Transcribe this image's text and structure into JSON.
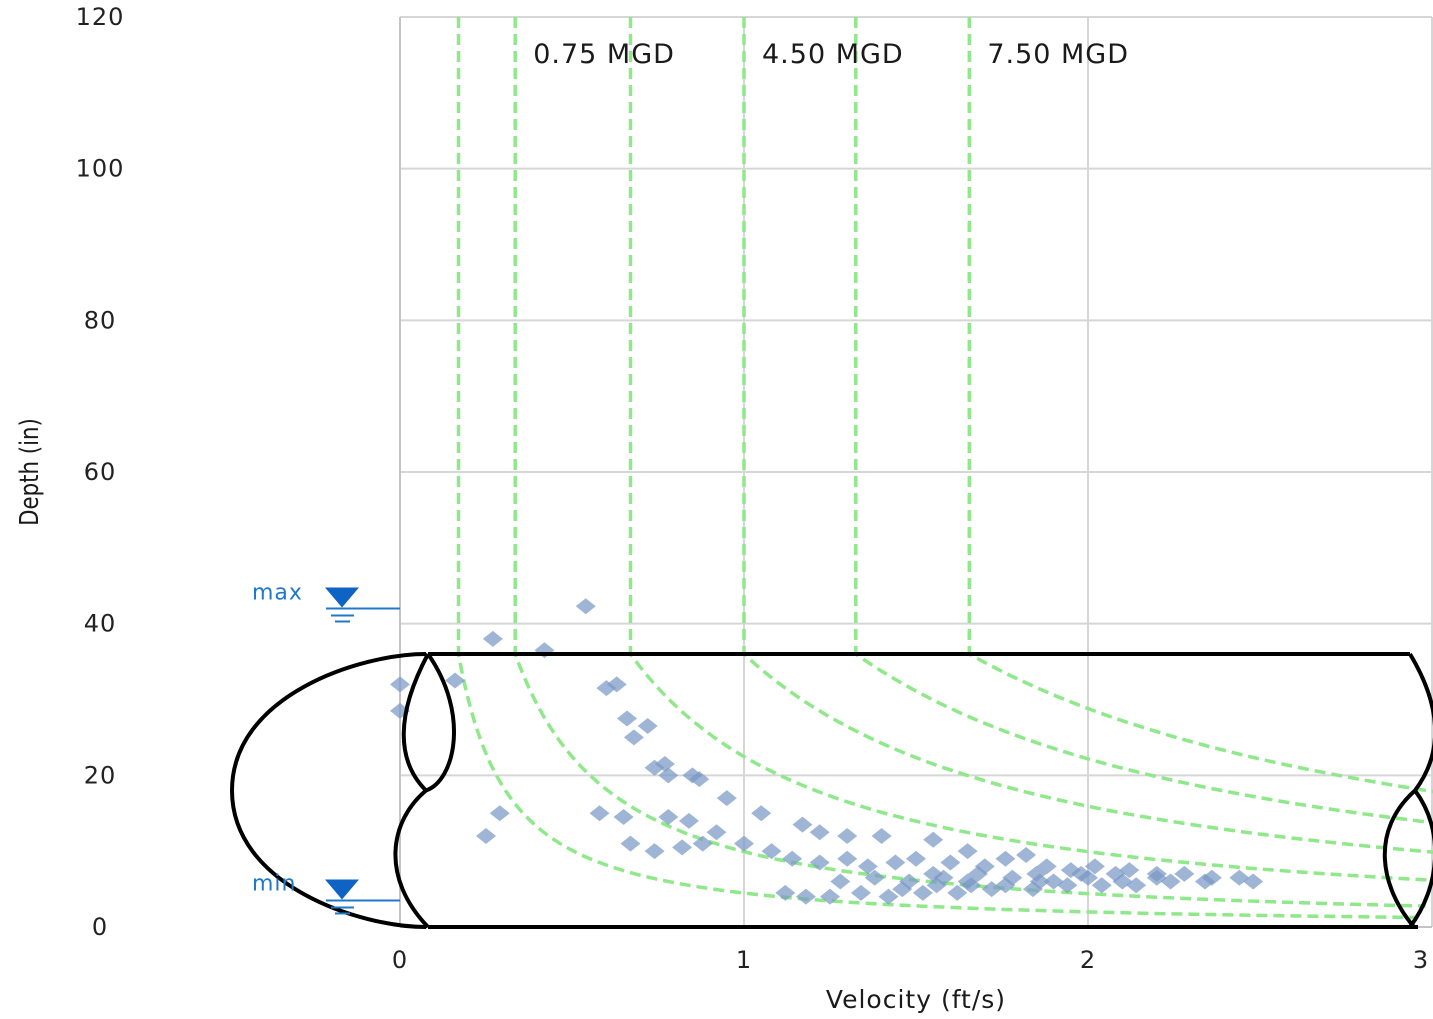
{
  "chart_data": {
    "type": "scatter",
    "xlabel": "Velocity (ft/s)",
    "ylabel": "Depth (in)",
    "xlim": [
      0,
      3
    ],
    "ylim": [
      0,
      120
    ],
    "x_ticks": [
      "0",
      "1",
      "2",
      "3"
    ],
    "y_ticks": [
      "0",
      "20",
      "40",
      "60",
      "80",
      "100",
      "120"
    ],
    "grid": true,
    "pipe_diameter_in": 36,
    "levels": [
      {
        "label": "max",
        "depth": 42
      },
      {
        "label": "min",
        "depth": 3.5
      }
    ],
    "iso_flow_curves": [
      {
        "asymptote_velocity": 0.17,
        "label": ""
      },
      {
        "asymptote_velocity": 0.335,
        "label": "0.75 MGD"
      },
      {
        "asymptote_velocity": 0.67,
        "label": ""
      },
      {
        "asymptote_velocity": 1.0,
        "label": "4.50 MGD"
      },
      {
        "asymptote_velocity": 1.325,
        "label": ""
      },
      {
        "asymptote_velocity": 1.655,
        "label": "7.50 MGD"
      }
    ],
    "series": [
      {
        "marker": "diamond",
        "points": [
          [
            0.54,
            42.3
          ],
          [
            0.27,
            38.0
          ],
          [
            0.42,
            36.5
          ],
          [
            0.16,
            32.5
          ],
          [
            0.0,
            32.0
          ],
          [
            0.63,
            32.0
          ],
          [
            0.6,
            31.5
          ],
          [
            0.0,
            28.5
          ],
          [
            0.66,
            27.5
          ],
          [
            0.72,
            26.5
          ],
          [
            0.68,
            25.0
          ],
          [
            0.77,
            21.5
          ],
          [
            0.74,
            21.0
          ],
          [
            0.78,
            20.0
          ],
          [
            0.87,
            19.5
          ],
          [
            0.85,
            20.0
          ],
          [
            0.95,
            17.0
          ],
          [
            1.05,
            15.0
          ],
          [
            0.29,
            15.0
          ],
          [
            0.58,
            15.0
          ],
          [
            0.65,
            14.5
          ],
          [
            0.78,
            14.5
          ],
          [
            0.84,
            14.0
          ],
          [
            0.92,
            12.5
          ],
          [
            0.25,
            12.0
          ],
          [
            0.67,
            11.0
          ],
          [
            0.74,
            10.0
          ],
          [
            0.82,
            10.5
          ],
          [
            0.88,
            11.0
          ],
          [
            1.17,
            13.5
          ],
          [
            1.22,
            12.5
          ],
          [
            1.3,
            12.0
          ],
          [
            1.4,
            12.0
          ],
          [
            1.55,
            11.5
          ],
          [
            1.65,
            10.0
          ],
          [
            1.82,
            9.5
          ],
          [
            1.0,
            11.0
          ],
          [
            1.08,
            10.0
          ],
          [
            1.14,
            9.0
          ],
          [
            1.22,
            8.5
          ],
          [
            1.3,
            9.0
          ],
          [
            1.36,
            8.0
          ],
          [
            1.44,
            8.5
          ],
          [
            1.5,
            9.0
          ],
          [
            1.6,
            8.5
          ],
          [
            1.7,
            8.0
          ],
          [
            1.76,
            9.0
          ],
          [
            1.88,
            8.0
          ],
          [
            1.95,
            7.5
          ],
          [
            2.02,
            8.0
          ],
          [
            2.12,
            7.5
          ],
          [
            2.2,
            7.0
          ],
          [
            2.28,
            7.0
          ],
          [
            2.36,
            6.5
          ],
          [
            2.44,
            6.5
          ],
          [
            2.48,
            6.0
          ],
          [
            1.12,
            4.5
          ],
          [
            1.18,
            4.0
          ],
          [
            1.25,
            4.0
          ],
          [
            1.34,
            4.5
          ],
          [
            1.42,
            4.0
          ],
          [
            1.52,
            4.5
          ],
          [
            1.62,
            4.5
          ],
          [
            1.72,
            5.0
          ],
          [
            1.84,
            5.0
          ],
          [
            1.94,
            5.5
          ],
          [
            2.04,
            5.5
          ],
          [
            2.14,
            5.5
          ],
          [
            2.24,
            6.0
          ],
          [
            2.34,
            6.0
          ],
          [
            1.28,
            6.0
          ],
          [
            1.38,
            6.5
          ],
          [
            1.48,
            6.0
          ],
          [
            1.58,
            6.5
          ],
          [
            1.68,
            7.0
          ],
          [
            1.78,
            6.5
          ],
          [
            1.9,
            6.0
          ],
          [
            2.0,
            6.5
          ],
          [
            2.1,
            6.0
          ],
          [
            2.2,
            6.5
          ],
          [
            1.55,
            7.0
          ],
          [
            1.65,
            6.0
          ],
          [
            1.85,
            7.0
          ],
          [
            1.98,
            7.0
          ],
          [
            2.08,
            7.0
          ],
          [
            1.46,
            5.0
          ],
          [
            1.56,
            5.5
          ],
          [
            1.66,
            5.5
          ],
          [
            1.76,
            5.5
          ],
          [
            1.86,
            6.0
          ]
        ]
      }
    ]
  }
}
